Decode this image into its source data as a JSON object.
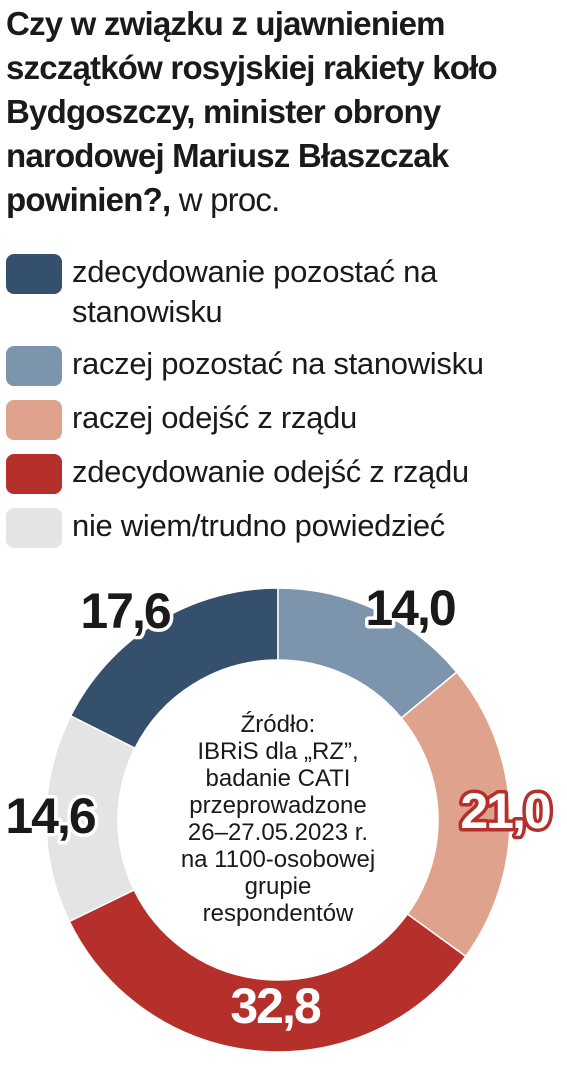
{
  "chart_data": {
    "type": "pie",
    "title": "Czy w związku z ujawnieniem szczątków rosyjskiej rakiety koło Bydgoszczy, minister obrony narodowej Mariusz Błaszczak powinien?,",
    "subtitle": "w proc.",
    "categories": [
      "zdecydowanie pozostać na stanowisku",
      "raczej pozostać na stanowisku",
      "raczej odejść z rządu",
      "zdecydowanie odejść z rządu",
      "nie wiem/trudno powiedzieć"
    ],
    "values": [
      17.6,
      14.0,
      21.0,
      32.8,
      14.6
    ],
    "value_labels": [
      "17,6",
      "14,0",
      "21,0",
      "32,8",
      "14,6"
    ],
    "colors": [
      "#34506d",
      "#7d94ad",
      "#dfa28c",
      "#b5302a",
      "#e4e4e4"
    ],
    "note": [
      "Źródło:",
      "IBRiS dla „RZ”,",
      "badanie CATI",
      "przeprowadzone",
      "26–27.05.2023 r.",
      "na 1100-osobowej",
      "grupie",
      "respondentów"
    ]
  }
}
